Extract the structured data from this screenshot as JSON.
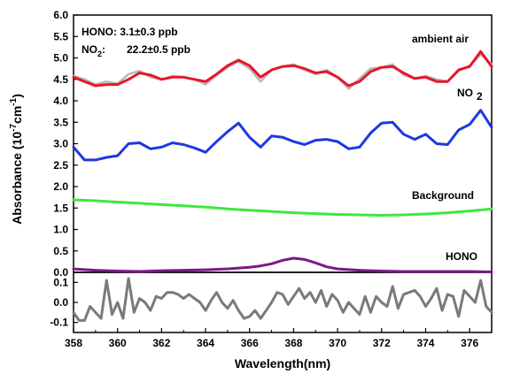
{
  "chart_data": {
    "type": "line",
    "xlabel": "Wavelength(nm)",
    "ylabel": {
      "main": "Absorbance (10",
      "sup1": "-7",
      "mid": "cm",
      "sup2": "-1",
      "end": ")"
    },
    "xlim": [
      358,
      377
    ],
    "xticks": [
      "358",
      "360",
      "362",
      "364",
      "366",
      "368",
      "370",
      "372",
      "374",
      "376"
    ],
    "upper_panel": {
      "ylim": [
        0,
        6.0
      ],
      "yticks": [
        "0.0",
        "0.5",
        "1.0",
        "1.5",
        "2.0",
        "2.5",
        "3.0",
        "3.5",
        "4.0",
        "4.5",
        "5.0",
        "5.5",
        "6.0"
      ],
      "annotation": {
        "hono": "HONO: 3.1±0.3 ppb",
        "no2_prefix": "NO",
        "no2_sub": "2",
        "no2_suffix": ":",
        "no2_value": "22.2±0.5 ppb"
      },
      "series": [
        {
          "name": "ambient air (fit)",
          "label": "",
          "color": "#b8b8b8",
          "width": 2.5,
          "x": [
            358,
            358.5,
            359,
            359.5,
            360,
            360.5,
            361,
            361.5,
            362,
            362.5,
            363,
            363.5,
            364,
            364.5,
            365,
            365.5,
            366,
            366.5,
            367,
            367.5,
            368,
            368.5,
            369,
            369.5,
            370,
            370.5,
            371,
            371.5,
            372,
            372.5,
            373,
            373.5,
            374,
            374.5,
            375,
            375.5,
            376,
            376.5,
            377
          ],
          "y": [
            4.58,
            4.5,
            4.38,
            4.45,
            4.4,
            4.62,
            4.7,
            4.55,
            4.5,
            4.58,
            4.55,
            4.5,
            4.38,
            4.6,
            4.78,
            4.92,
            4.75,
            4.45,
            4.72,
            4.8,
            4.85,
            4.72,
            4.62,
            4.72,
            4.55,
            4.28,
            4.52,
            4.75,
            4.78,
            4.85,
            4.6,
            4.52,
            4.58,
            4.5,
            4.45,
            4.7,
            4.82,
            5.08,
            4.85
          ]
        },
        {
          "name": "ambient air",
          "label": "ambient air",
          "color": "#e8162b",
          "width": 3,
          "x": [
            358,
            358.5,
            359,
            359.5,
            360,
            360.5,
            361,
            361.5,
            362,
            362.5,
            363,
            363.5,
            364,
            364.5,
            365,
            365.5,
            366,
            366.5,
            367,
            367.5,
            368,
            368.5,
            369,
            369.5,
            370,
            370.5,
            371,
            371.5,
            372,
            372.5,
            373,
            373.5,
            374,
            374.5,
            375,
            375.5,
            376,
            376.5,
            377
          ],
          "y": [
            4.55,
            4.45,
            4.35,
            4.38,
            4.38,
            4.5,
            4.65,
            4.6,
            4.5,
            4.55,
            4.55,
            4.5,
            4.45,
            4.62,
            4.82,
            4.95,
            4.82,
            4.55,
            4.72,
            4.8,
            4.82,
            4.75,
            4.65,
            4.68,
            4.55,
            4.35,
            4.45,
            4.68,
            4.78,
            4.8,
            4.65,
            4.52,
            4.55,
            4.45,
            4.45,
            4.72,
            4.8,
            5.15,
            4.8
          ]
        },
        {
          "name": "NO2",
          "label": "NO2",
          "color": "#1c39e2",
          "width": 3,
          "x": [
            358,
            358.5,
            359,
            359.5,
            360,
            360.5,
            361,
            361.5,
            362,
            362.5,
            363,
            363.5,
            364,
            364.5,
            365,
            365.5,
            366,
            366.5,
            367,
            367.5,
            368,
            368.5,
            369,
            369.5,
            370,
            370.5,
            371,
            371.5,
            372,
            372.5,
            373,
            373.5,
            374,
            374.5,
            375,
            375.5,
            376,
            376.5,
            377
          ],
          "y": [
            2.92,
            2.62,
            2.62,
            2.68,
            2.72,
            3.0,
            3.02,
            2.88,
            2.92,
            3.02,
            2.98,
            2.9,
            2.8,
            3.05,
            3.28,
            3.48,
            3.15,
            2.92,
            3.18,
            3.15,
            3.05,
            2.98,
            3.08,
            3.1,
            3.05,
            2.88,
            2.92,
            3.25,
            3.48,
            3.5,
            3.22,
            3.1,
            3.22,
            3.0,
            2.98,
            3.32,
            3.45,
            3.78,
            3.38
          ]
        },
        {
          "name": "Background",
          "label": "Background",
          "color": "#3ee83e",
          "width": 3,
          "x": [
            358,
            359,
            360,
            361,
            362,
            363,
            364,
            365,
            366,
            367,
            368,
            369,
            370,
            371,
            372,
            373,
            374,
            375,
            376,
            377
          ],
          "y": [
            1.69,
            1.67,
            1.64,
            1.61,
            1.58,
            1.55,
            1.52,
            1.48,
            1.45,
            1.42,
            1.39,
            1.37,
            1.35,
            1.34,
            1.33,
            1.34,
            1.36,
            1.39,
            1.43,
            1.48
          ]
        },
        {
          "name": "HONO",
          "label": "HONO",
          "color": "#7a1a86",
          "width": 3,
          "x": [
            358,
            359,
            360,
            361,
            362,
            363,
            364,
            365,
            366,
            366.5,
            367,
            367.5,
            368,
            368.5,
            369,
            369.5,
            370,
            371,
            372,
            373,
            374,
            375,
            376,
            377
          ],
          "y": [
            0.08,
            0.05,
            0.03,
            0.02,
            0.04,
            0.05,
            0.06,
            0.08,
            0.12,
            0.15,
            0.2,
            0.28,
            0.33,
            0.3,
            0.22,
            0.13,
            0.08,
            0.05,
            0.03,
            0.02,
            0.02,
            0.02,
            0.02,
            0.01
          ]
        }
      ]
    },
    "lower_panel": {
      "ylim": [
        -0.15,
        0.15
      ],
      "yticks": [
        "0.1",
        "0.0",
        "-0.1"
      ],
      "series": [
        {
          "name": "residual",
          "label": "",
          "color": "#7a7a7a",
          "width": 3,
          "x": [
            358,
            358.25,
            358.5,
            358.75,
            359,
            359.25,
            359.5,
            359.75,
            360,
            360.25,
            360.5,
            360.75,
            361,
            361.25,
            361.5,
            361.75,
            362,
            362.25,
            362.5,
            362.75,
            363,
            363.25,
            363.5,
            363.75,
            364,
            364.25,
            364.5,
            364.75,
            365,
            365.25,
            365.5,
            365.75,
            366,
            366.25,
            366.5,
            366.75,
            367,
            367.25,
            367.5,
            367.75,
            368,
            368.25,
            368.5,
            368.75,
            369,
            369.25,
            369.5,
            369.75,
            370,
            370.25,
            370.5,
            370.75,
            371,
            371.25,
            371.5,
            371.75,
            372,
            372.25,
            372.5,
            372.75,
            373,
            373.25,
            373.5,
            373.75,
            374,
            374.25,
            374.5,
            374.75,
            375,
            375.25,
            375.5,
            375.75,
            376,
            376.25,
            376.5,
            376.75,
            377
          ],
          "y": [
            -0.05,
            -0.09,
            -0.09,
            -0.02,
            -0.05,
            -0.08,
            0.11,
            -0.06,
            0.0,
            -0.08,
            0.12,
            -0.05,
            0.02,
            0.0,
            -0.04,
            0.03,
            0.02,
            0.05,
            0.05,
            0.04,
            0.02,
            0.04,
            0.02,
            0.0,
            -0.04,
            0.01,
            0.05,
            0.0,
            -0.03,
            0.01,
            -0.04,
            -0.08,
            -0.07,
            -0.04,
            -0.08,
            -0.04,
            0.0,
            0.05,
            0.04,
            -0.01,
            0.03,
            0.07,
            0.02,
            0.05,
            0.0,
            0.06,
            -0.02,
            0.04,
            0.01,
            -0.05,
            0.0,
            -0.03,
            -0.06,
            0.03,
            -0.05,
            0.03,
            0.0,
            -0.02,
            0.08,
            -0.03,
            0.04,
            0.05,
            0.06,
            0.03,
            -0.02,
            0.02,
            0.07,
            -0.04,
            0.04,
            0.03,
            -0.07,
            0.06,
            0.03,
            0.0,
            0.11,
            -0.02,
            -0.05
          ]
        }
      ]
    }
  }
}
